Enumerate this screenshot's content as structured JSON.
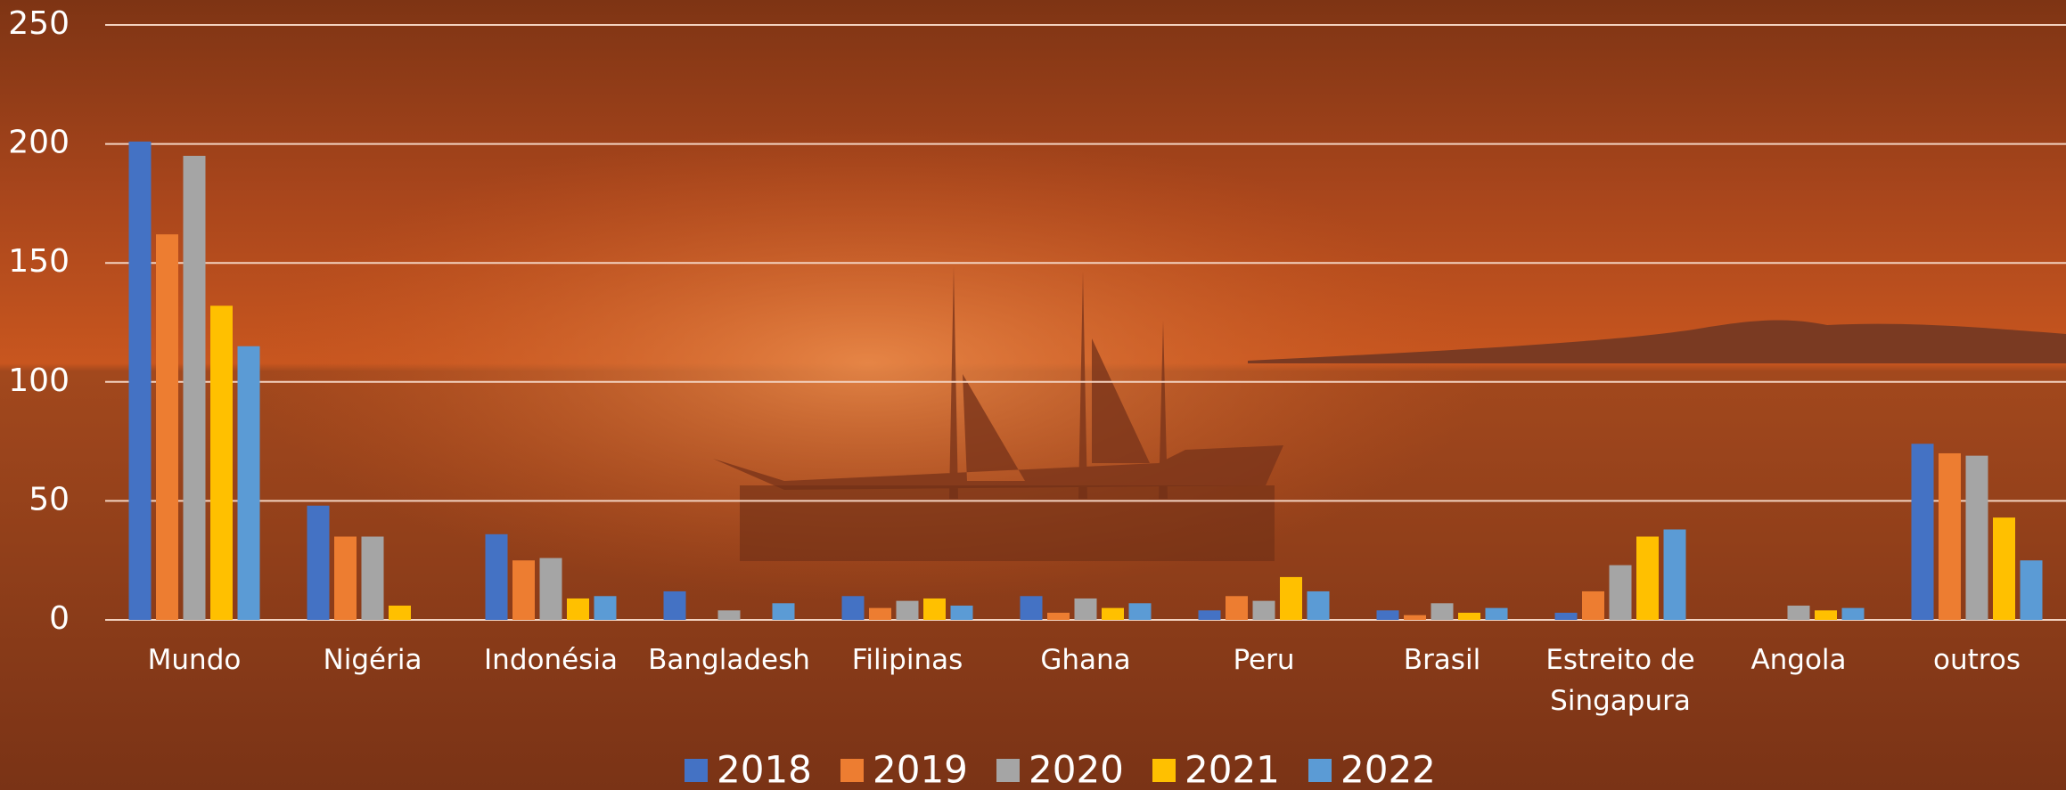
{
  "chart_data": {
    "type": "bar",
    "categories": [
      "Mundo",
      "Nigéria",
      "Indonésia",
      "Bangladesh",
      "Filipinas",
      "Ghana",
      "Peru",
      "Brasil",
      "Estreito de Singapura",
      "Angola",
      "outros"
    ],
    "series": [
      {
        "name": "2018",
        "color": "#4472c4",
        "values": [
          201,
          48,
          36,
          12,
          10,
          10,
          4,
          4,
          3,
          0,
          74
        ]
      },
      {
        "name": "2019",
        "color": "#ed7d31",
        "values": [
          162,
          35,
          25,
          0,
          5,
          3,
          10,
          2,
          12,
          0,
          70
        ]
      },
      {
        "name": "2020",
        "color": "#a5a5a5",
        "values": [
          195,
          35,
          26,
          4,
          8,
          9,
          8,
          7,
          23,
          6,
          69
        ]
      },
      {
        "name": "2021",
        "color": "#ffc000",
        "values": [
          132,
          6,
          9,
          0,
          9,
          5,
          18,
          3,
          35,
          4,
          43
        ]
      },
      {
        "name": "2022",
        "color": "#5b9bd5",
        "values": [
          115,
          0,
          10,
          7,
          6,
          7,
          12,
          5,
          38,
          5,
          25
        ]
      }
    ],
    "ylim": [
      0,
      250
    ],
    "yticks": [
      0,
      50,
      100,
      150,
      200,
      250
    ],
    "grid": true,
    "legend": "bottom"
  }
}
